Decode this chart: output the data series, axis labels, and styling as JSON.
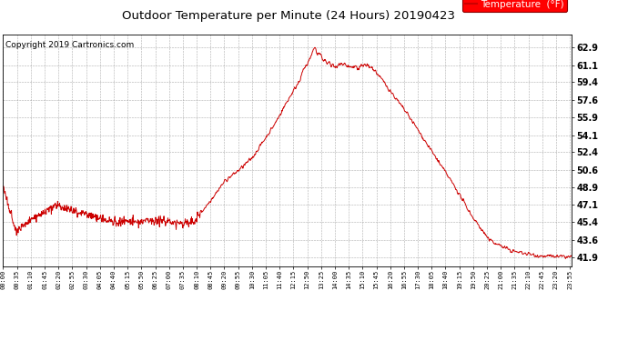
{
  "title": "Outdoor Temperature per Minute (24 Hours) 20190423",
  "copyright_text": "Copyright 2019 Cartronics.com",
  "legend_label": "Temperature  (°F)",
  "line_color": "#cc0000",
  "bg_color": "#ffffff",
  "grid_color": "#999999",
  "yticks": [
    41.9,
    43.6,
    45.4,
    47.1,
    48.9,
    50.6,
    52.4,
    54.1,
    55.9,
    57.6,
    59.4,
    61.1,
    62.9
  ],
  "ylim": [
    41.0,
    64.2
  ],
  "xtick_labels": [
    "00:00",
    "00:35",
    "01:10",
    "01:45",
    "02:20",
    "02:55",
    "03:30",
    "04:05",
    "04:40",
    "05:15",
    "05:50",
    "06:25",
    "07:00",
    "07:35",
    "08:10",
    "08:45",
    "09:20",
    "09:55",
    "10:30",
    "11:05",
    "11:40",
    "12:15",
    "12:50",
    "13:25",
    "14:00",
    "14:35",
    "15:10",
    "15:45",
    "16:20",
    "16:55",
    "17:30",
    "18:05",
    "18:40",
    "19:15",
    "19:50",
    "20:25",
    "21:00",
    "21:35",
    "22:10",
    "22:45",
    "23:20",
    "23:55"
  ],
  "num_points": 1440,
  "control_t": [
    0.0,
    0.012,
    0.022,
    0.055,
    0.095,
    0.125,
    0.17,
    0.195,
    0.235,
    0.27,
    0.305,
    0.335,
    0.36,
    0.39,
    0.415,
    0.438,
    0.458,
    0.478,
    0.5,
    0.52,
    0.538,
    0.548,
    0.558,
    0.578,
    0.598,
    0.618,
    0.638,
    0.655,
    0.675,
    0.715,
    0.755,
    0.795,
    0.825,
    0.855,
    0.895,
    0.945,
    1.0
  ],
  "control_v": [
    48.9,
    46.5,
    44.5,
    45.8,
    47.1,
    46.5,
    45.8,
    45.4,
    45.4,
    45.6,
    45.3,
    45.4,
    47.2,
    49.5,
    50.6,
    51.8,
    53.5,
    55.2,
    57.5,
    59.4,
    61.5,
    62.9,
    61.8,
    61.0,
    61.2,
    60.8,
    61.1,
    60.5,
    59.0,
    55.9,
    52.4,
    48.9,
    46.0,
    43.6,
    42.5,
    42.0,
    41.9
  ]
}
